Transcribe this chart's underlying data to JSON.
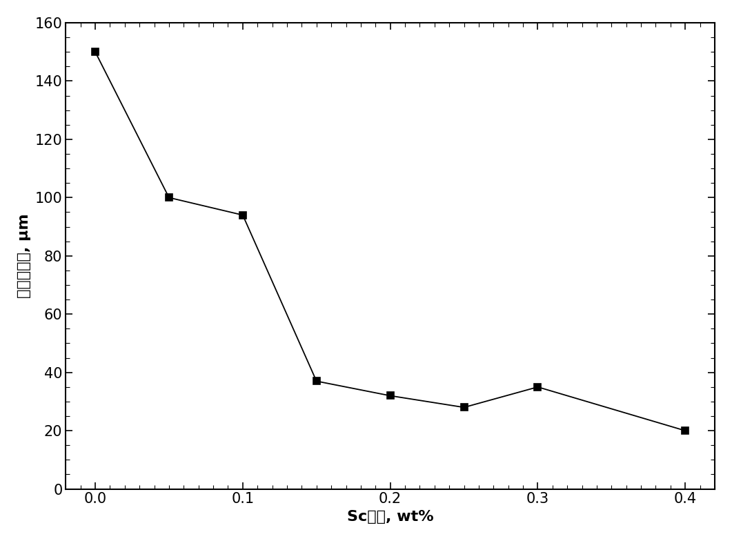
{
  "x": [
    0.0,
    0.05,
    0.1,
    0.15,
    0.2,
    0.25,
    0.3,
    0.4
  ],
  "y": [
    150,
    100,
    94,
    37,
    32,
    28,
    35,
    20
  ],
  "xlabel": "Sc含量, wt%",
  "ylabel": "共晶硅尺寸, μm",
  "xlim": [
    -0.02,
    0.42
  ],
  "ylim": [
    0,
    160
  ],
  "xticks": [
    0.0,
    0.1,
    0.2,
    0.3,
    0.4
  ],
  "yticks": [
    0,
    20,
    40,
    60,
    80,
    100,
    120,
    140,
    160
  ],
  "marker": "s",
  "marker_size": 7,
  "line_color": "#000000",
  "marker_color": "#000000",
  "label_fontsize": 16,
  "tick_fontsize": 15,
  "figure_width": 10.61,
  "figure_height": 7.84,
  "dpi": 100
}
